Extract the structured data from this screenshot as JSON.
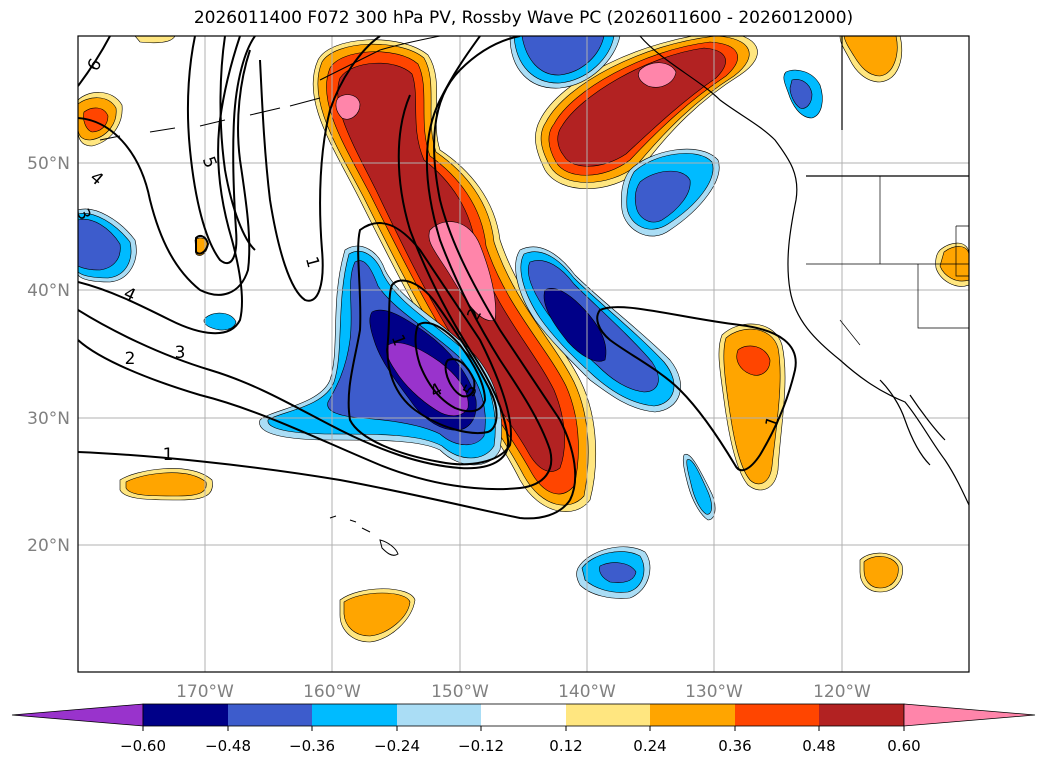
{
  "title": "2026011400 F072 300 hPa PV, Rossby Wave PC (2026011600 - 2026012000)",
  "map": {
    "lat_labels": [
      "50°N",
      "40°N",
      "30°N",
      "20°N"
    ],
    "lon_labels": [
      "170°W",
      "160°W",
      "150°W",
      "140°W",
      "130°W",
      "120°W"
    ],
    "grid": true,
    "label_color": "#808080"
  },
  "contour_labels": [
    "6",
    "5",
    "4",
    "3",
    "2",
    "1",
    "1",
    "4",
    "3",
    "2",
    "5",
    "4",
    "1",
    "1"
  ],
  "colorbar": {
    "ticks": [
      "−0.60",
      "−0.48",
      "−0.36",
      "−0.24",
      "−0.12",
      "0.12",
      "0.24",
      "0.36",
      "0.48",
      "0.60"
    ],
    "colors": {
      "under": "#9933cc",
      "n060": "#000088",
      "n048": "#3d5ccc",
      "n036": "#00bbff",
      "n024": "#aaddf5",
      "n012": "#ffffff",
      "p012": "#ffe680",
      "p024": "#ffa500",
      "p036": "#ff4500",
      "p048": "#b22222",
      "over": "#ff85aa"
    },
    "extend": "both"
  }
}
